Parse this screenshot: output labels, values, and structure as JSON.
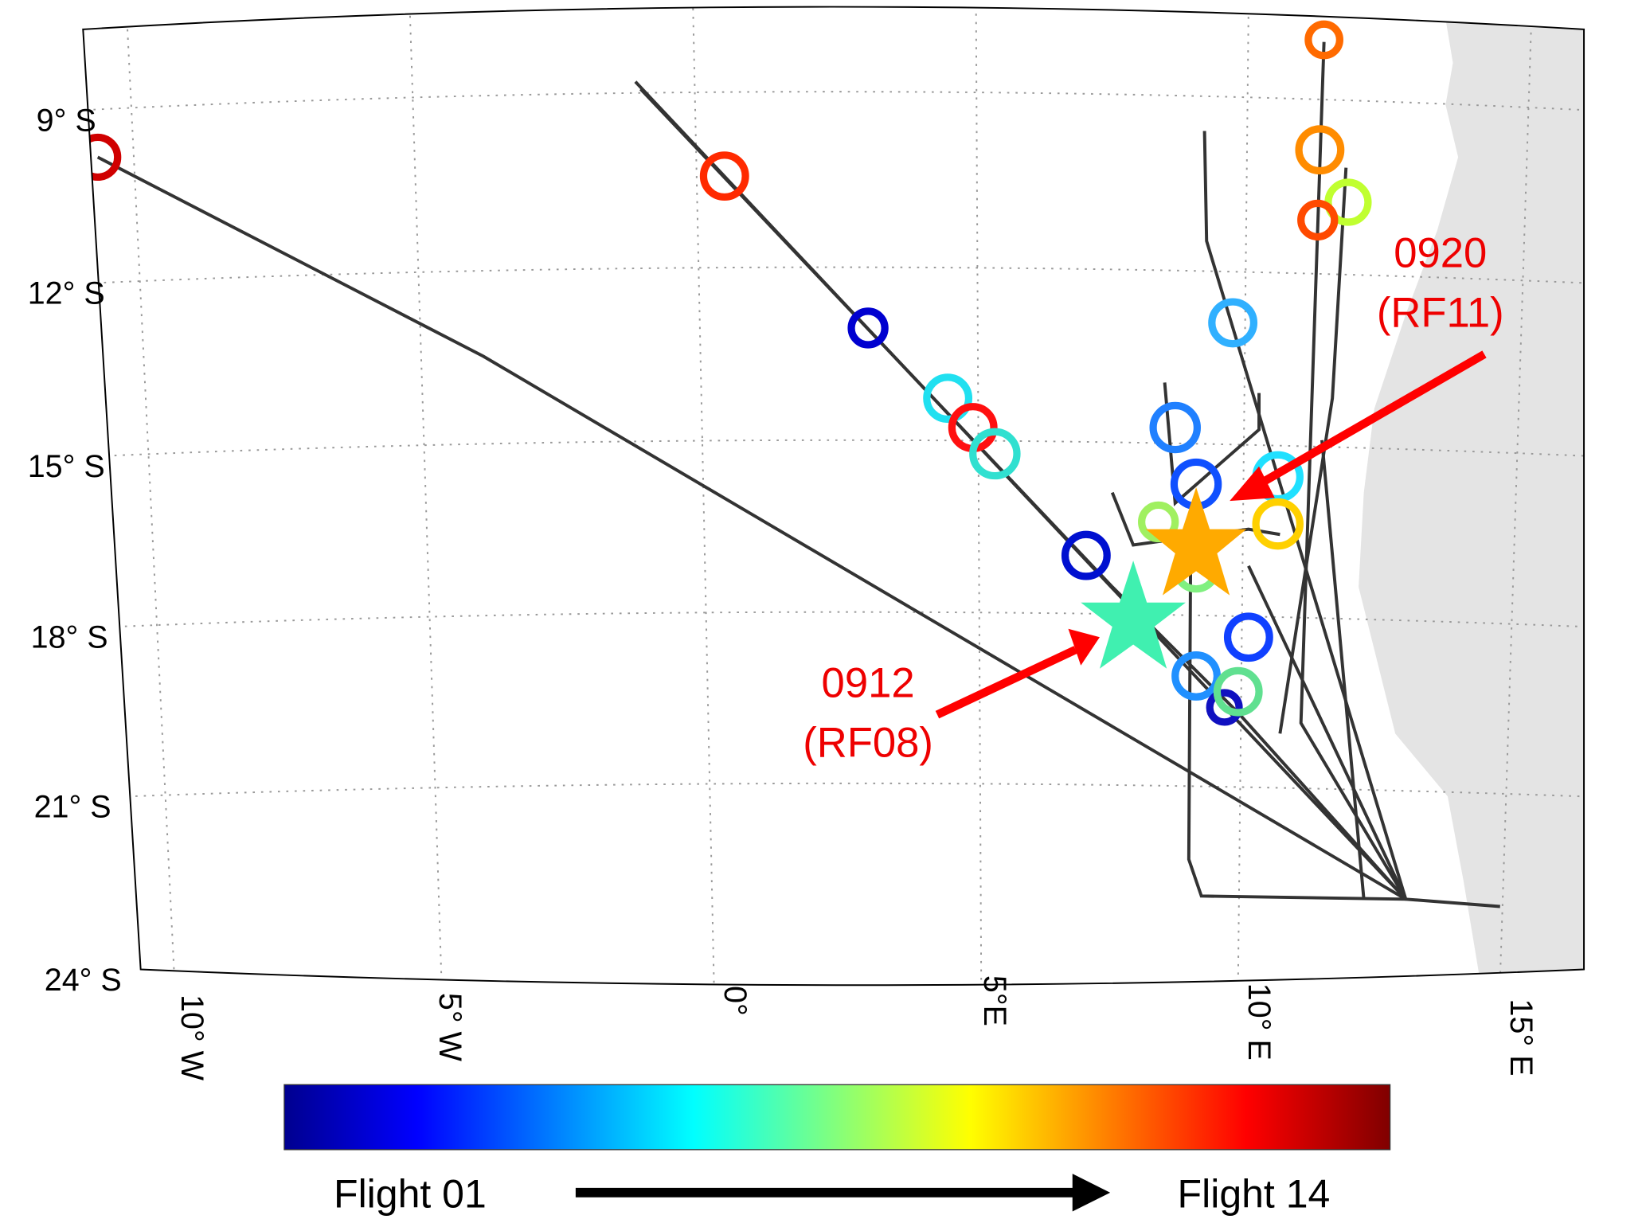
{
  "map": {
    "lat_labels": [
      "9° S",
      "12° S",
      "15° S",
      "18° S",
      "21° S",
      "24° S"
    ],
    "lon_labels": [
      "10° W",
      "5° W",
      "0°",
      "5°E",
      "10° E",
      "15° E"
    ],
    "annotations": [
      {
        "line1": "0920",
        "line2": "(RF11)"
      },
      {
        "line1": "0912",
        "line2": "(RF08)"
      }
    ],
    "colorbar": {
      "start_label": "Flight 01",
      "end_label": "Flight 14"
    }
  }
}
